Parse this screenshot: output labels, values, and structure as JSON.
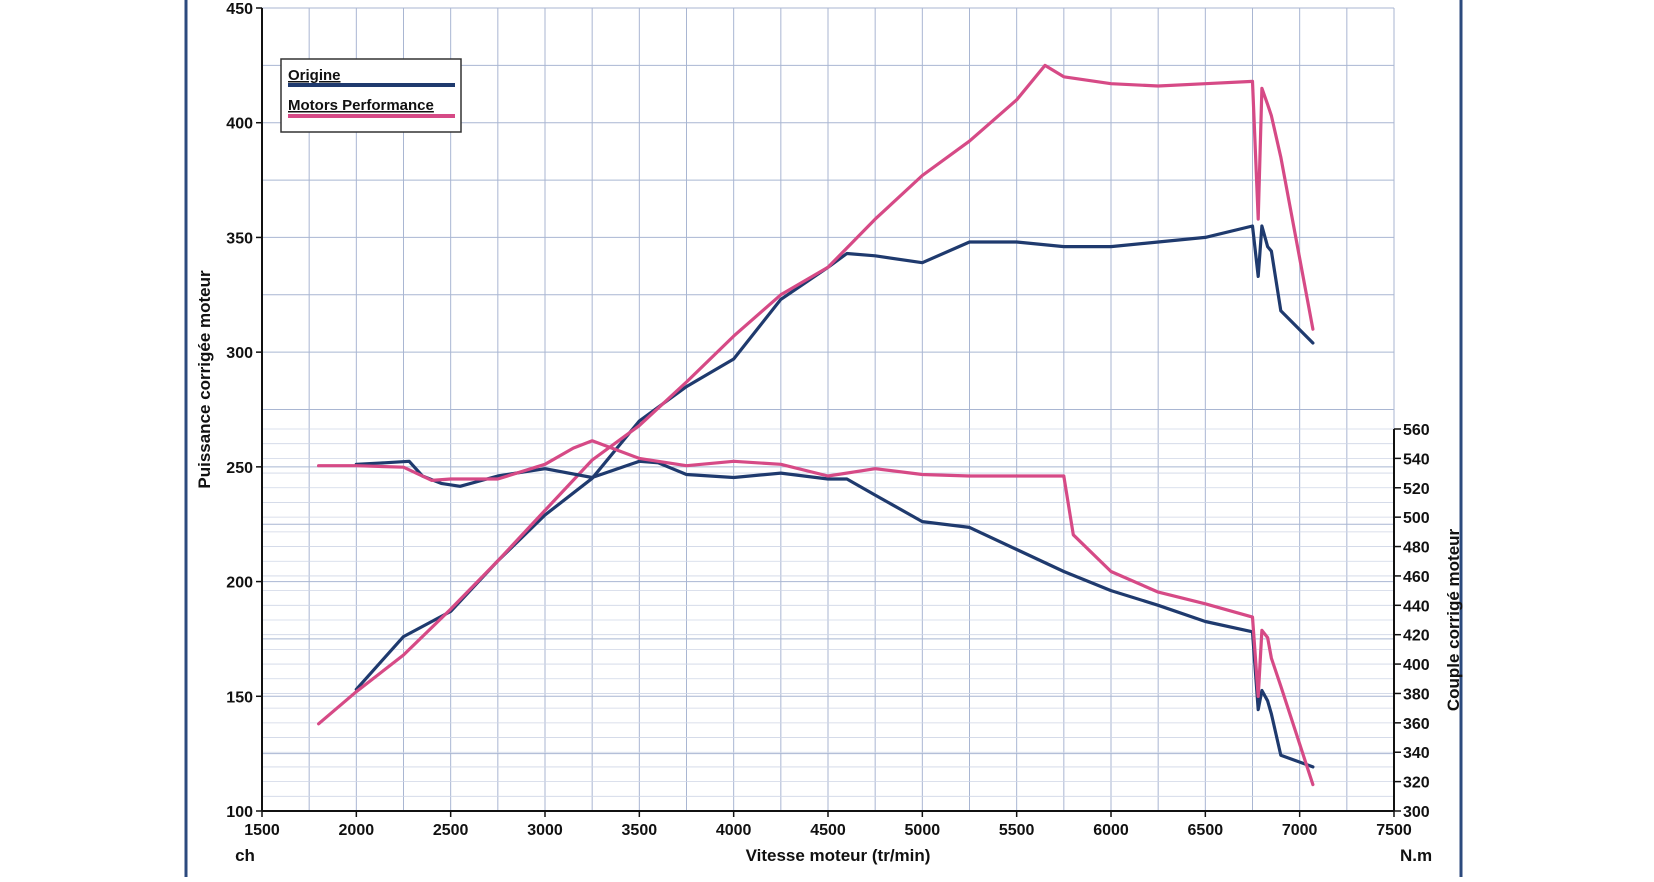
{
  "chart_data": {
    "type": "line",
    "xlabel": "Vitesse moteur (tr/min)",
    "x_unit_left": "ch",
    "x_unit_right": "N.m",
    "ylabel_left": "Puissance corrigée moteur",
    "ylabel_right": "Couple corrigé moteur",
    "xlim": [
      1500,
      7500
    ],
    "ylim_left": [
      100,
      450
    ],
    "ylim_right": [
      300,
      560
    ],
    "x_ticks": [
      "1500",
      "2000",
      "2500",
      "3000",
      "3500",
      "4000",
      "4500",
      "5000",
      "5500",
      "6000",
      "6500",
      "7000",
      "7500"
    ],
    "y_ticks_left": [
      "100",
      "150",
      "200",
      "250",
      "300",
      "350",
      "400",
      "450"
    ],
    "y_ticks_right": [
      "300",
      "320",
      "340",
      "360",
      "380",
      "400",
      "420",
      "440",
      "460",
      "480",
      "500",
      "520",
      "540",
      "560"
    ],
    "grid": true,
    "legend_position": "top-left",
    "legend": [
      {
        "name": "Origine",
        "color": "#1f3a6e"
      },
      {
        "name": "Motors Performance",
        "color": "#d64a86"
      }
    ],
    "series": [
      {
        "name": "Origine",
        "metric": "power",
        "axis": "left",
        "color": "#1f3a6e",
        "x": [
          2000,
          2250,
          2500,
          2750,
          3000,
          3250,
          3500,
          3750,
          4000,
          4250,
          4500,
          4600,
          4750,
          5000,
          5250,
          5500,
          5750,
          6000,
          6250,
          6500,
          6750,
          6780,
          6800,
          6830,
          6850,
          6900,
          7070
        ],
        "y": [
          153,
          176,
          187,
          209,
          229,
          245,
          270,
          285,
          297,
          323,
          337,
          343,
          342,
          339,
          348,
          348,
          346,
          346,
          348,
          350,
          355,
          333,
          355,
          346,
          344,
          318,
          304
        ]
      },
      {
        "name": "Motors Performance",
        "metric": "power",
        "axis": "left",
        "color": "#d64a86",
        "x": [
          1800,
          2000,
          2250,
          2500,
          2750,
          3000,
          3250,
          3500,
          3750,
          4000,
          4250,
          4500,
          4750,
          5000,
          5250,
          5500,
          5650,
          5750,
          6000,
          6250,
          6500,
          6750,
          6780,
          6800,
          6830,
          6850,
          6900,
          7070
        ],
        "y": [
          138,
          152,
          168,
          188,
          209,
          231,
          253,
          268,
          287,
          307,
          325,
          337,
          358,
          377,
          392,
          410,
          425,
          420,
          417,
          416,
          417,
          418,
          358,
          415,
          408,
          403,
          385,
          310
        ]
      },
      {
        "name": "Origine",
        "metric": "torque",
        "axis": "right",
        "color": "#1f3a6e",
        "x": [
          2000,
          2150,
          2280,
          2350,
          2450,
          2550,
          2750,
          3000,
          3250,
          3500,
          3600,
          3750,
          4000,
          4250,
          4500,
          4600,
          4750,
          5000,
          5250,
          5500,
          5750,
          6000,
          6250,
          6500,
          6750,
          6780,
          6800,
          6830,
          6850,
          6900,
          7070
        ],
        "y": [
          536,
          537,
          538,
          528,
          523,
          521,
          528,
          533,
          527,
          538,
          537,
          529,
          527,
          530,
          526,
          526,
          515,
          497,
          493,
          478,
          463,
          450,
          440,
          429,
          422,
          369,
          382,
          375,
          366,
          338,
          330
        ]
      },
      {
        "name": "Motors Performance",
        "metric": "torque",
        "axis": "right",
        "color": "#d64a86",
        "x": [
          1800,
          2000,
          2250,
          2400,
          2500,
          2750,
          3000,
          3150,
          3250,
          3500,
          3750,
          4000,
          4250,
          4500,
          4750,
          5000,
          5250,
          5500,
          5750,
          5800,
          6000,
          6250,
          6500,
          6750,
          6780,
          6800,
          6830,
          6850,
          6900,
          7070
        ],
        "y": [
          535,
          535,
          534,
          525,
          526,
          526,
          536,
          547,
          552,
          540,
          535,
          538,
          536,
          528,
          533,
          529,
          528,
          528,
          528,
          488,
          463,
          449,
          441,
          432,
          378,
          423,
          418,
          404,
          385,
          318
        ]
      }
    ]
  }
}
